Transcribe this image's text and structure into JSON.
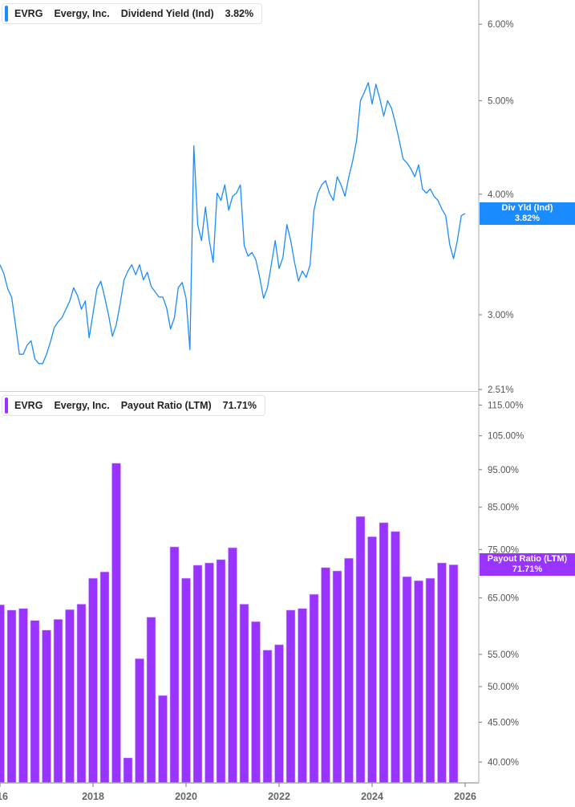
{
  "colors": {
    "yield": "#1a8cff",
    "payout": "#9933ff",
    "axis": "#aaaaaa",
    "tick_text": "#555555"
  },
  "top_legend": {
    "ticker": "EVRG",
    "company": "Evergy, Inc.",
    "metric": "Dividend Yield (Ind)",
    "value": "3.82%"
  },
  "bottom_legend": {
    "ticker": "EVRG",
    "company": "Evergy, Inc.",
    "metric": "Payout Ratio (LTM)",
    "value": "71.71%"
  },
  "top_tag": {
    "label": "Div Yld (Ind)",
    "value": "3.82%"
  },
  "bottom_tag": {
    "label": "Payout Ratio (LTM)",
    "value": "71.71%"
  },
  "chart_data": [
    {
      "type": "line",
      "series": [
        {
          "name": "Dividend Yield (Ind)",
          "color": "#1a8cff"
        }
      ],
      "yscale": "log",
      "ylim": [
        2.51,
        6.2
      ],
      "yticks": [
        {
          "v": 6,
          "label": "6.00%"
        },
        {
          "v": 5,
          "label": "5.00%"
        },
        {
          "v": 4,
          "label": "4.00%"
        },
        {
          "v": 3,
          "label": "3.00%"
        },
        {
          "v": 2.51,
          "label": "2.51%"
        }
      ],
      "start": "2016-01",
      "step": "1 month",
      "values": [
        3.38,
        3.31,
        3.19,
        3.13,
        2.93,
        2.73,
        2.73,
        2.79,
        2.82,
        2.7,
        2.67,
        2.67,
        2.73,
        2.81,
        2.91,
        2.95,
        2.98,
        3.04,
        3.1,
        3.2,
        3.14,
        3.04,
        3.1,
        2.84,
        3.01,
        3.19,
        3.25,
        3.13,
        3.0,
        2.85,
        2.93,
        3.08,
        3.26,
        3.33,
        3.38,
        3.3,
        3.38,
        3.26,
        3.32,
        3.21,
        3.17,
        3.13,
        3.13,
        3.05,
        2.9,
        2.98,
        3.2,
        3.24,
        3.12,
        2.76,
        4.49,
        3.72,
        3.58,
        3.88,
        3.58,
        3.4,
        4.01,
        3.94,
        4.09,
        3.85,
        3.98,
        4.01,
        4.09,
        3.54,
        3.45,
        3.48,
        3.42,
        3.28,
        3.12,
        3.2,
        3.38,
        3.58,
        3.35,
        3.44,
        3.72,
        3.58,
        3.4,
        3.25,
        3.33,
        3.28,
        3.38,
        3.85,
        4.01,
        4.09,
        4.13,
        4.01,
        3.94,
        4.17,
        4.09,
        3.98,
        4.17,
        4.33,
        4.55,
        5.0,
        5.1,
        5.22,
        4.96,
        5.2,
        5.02,
        4.82,
        5.0,
        4.91,
        4.74,
        4.55,
        4.35,
        4.31,
        4.25,
        4.17,
        4.29,
        4.05,
        4.01,
        4.05,
        3.98,
        3.94,
        3.86,
        3.8,
        3.55,
        3.43,
        3.58,
        3.8,
        3.82
      ],
      "grid": false
    },
    {
      "type": "bar",
      "series": [
        {
          "name": "Payout Ratio (LTM)",
          "color": "#9933ff"
        }
      ],
      "yscale": "log",
      "ylim": [
        37,
        118
      ],
      "yticks": [
        {
          "v": 115,
          "label": "115.00%"
        },
        {
          "v": 105,
          "label": "105.00%"
        },
        {
          "v": 95,
          "label": "95.00%"
        },
        {
          "v": 85,
          "label": "85.00%"
        },
        {
          "v": 75,
          "label": "75.00%"
        },
        {
          "v": 65,
          "label": "65.00%"
        },
        {
          "v": 55,
          "label": "55.00%"
        },
        {
          "v": 50,
          "label": "50.00%"
        },
        {
          "v": 45,
          "label": "45.00%"
        },
        {
          "v": 40,
          "label": "40.00%"
        }
      ],
      "start": "2016-01",
      "step": "1 quarter",
      "values": [
        63.7,
        62.7,
        63.0,
        60.8,
        59.1,
        61.0,
        62.8,
        63.8,
        68.9,
        70.2,
        96.8,
        40.5,
        54.3,
        61.4,
        48.7,
        75.6,
        68.9,
        71.6,
        72.1,
        72.8,
        75.4,
        63.8,
        60.6,
        55.7,
        56.6,
        62.7,
        63.0,
        65.7,
        71.1,
        70.4,
        73.1,
        82.7,
        77.9,
        81.2,
        79.1,
        69.2,
        68.4,
        68.9,
        72.1,
        71.7
      ],
      "xticks": [
        "16",
        "2018",
        "2020",
        "2022",
        "2024",
        "2026"
      ],
      "grid": false
    }
  ]
}
